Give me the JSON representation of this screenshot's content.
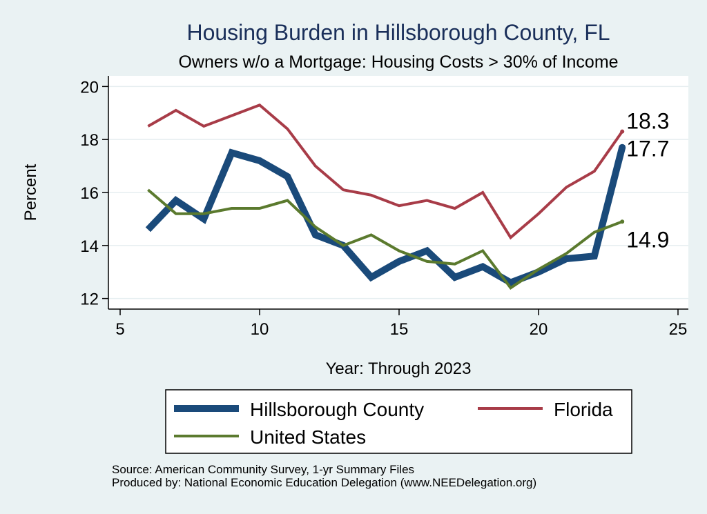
{
  "chart_data": {
    "type": "line",
    "title": "Housing Burden in Hillsborough County, FL",
    "subtitle": "Owners w/o a Mortgage: Housing Costs > 30% of Income",
    "xlabel": "Year: Through 2023",
    "ylabel": "Percent",
    "xlim": [
      5,
      25
    ],
    "ylim": [
      11.6,
      20.4
    ],
    "xticks": [
      5,
      10,
      15,
      20,
      25
    ],
    "yticks": [
      12,
      14,
      16,
      18,
      20
    ],
    "grid": true,
    "legend_position": "bottom",
    "x": [
      6,
      7,
      8,
      9,
      10,
      11,
      12,
      13,
      14,
      15,
      16,
      17,
      18,
      19,
      20,
      21,
      22,
      23
    ],
    "series": [
      {
        "name": "Hillsborough County",
        "color": "#1a4a7a",
        "values": [
          14.6,
          15.7,
          15.0,
          17.5,
          17.2,
          16.6,
          14.4,
          14.0,
          12.8,
          13.4,
          13.8,
          12.8,
          13.2,
          12.6,
          13.0,
          13.5,
          13.6,
          17.7
        ],
        "end_label": "17.7"
      },
      {
        "name": "Florida",
        "color": "#a83c48",
        "values": [
          18.5,
          19.1,
          18.5,
          18.9,
          19.3,
          18.4,
          17.0,
          16.1,
          15.9,
          15.5,
          15.7,
          15.4,
          16.0,
          14.3,
          15.2,
          16.2,
          16.8,
          18.3
        ],
        "end_label": "18.3"
      },
      {
        "name": "United States",
        "color": "#5b7a2e",
        "values": [
          16.1,
          15.2,
          15.2,
          15.4,
          15.4,
          15.7,
          14.7,
          14.0,
          14.4,
          13.8,
          13.4,
          13.3,
          13.8,
          12.4,
          13.1,
          13.7,
          14.5,
          14.9
        ],
        "end_label": "14.9"
      }
    ],
    "source": "Source: American Community Survey, 1-yr Summary Files",
    "producer": "Produced by: National Economic Education Delegation (www.NEEDelegation.org)"
  }
}
